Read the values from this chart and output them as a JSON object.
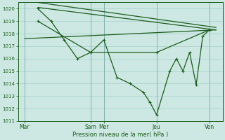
{
  "background_color": "#cde8e3",
  "grid_color": "#a8cfc8",
  "line_color": "#1a5c1a",
  "ylabel": "Pression niveau de la mer( hPa )",
  "ylim": [
    1011,
    1020.5
  ],
  "yticks": [
    1011,
    1012,
    1013,
    1014,
    1015,
    1016,
    1017,
    1018,
    1019,
    1020
  ],
  "xtick_labels": [
    "Mar",
    "Sam",
    "Mer",
    "Jeu",
    "Ven"
  ],
  "xtick_positions": [
    0,
    5,
    6,
    10,
    14
  ],
  "xlim": [
    -0.5,
    15.0
  ],
  "series_main": {
    "x": [
      1,
      2,
      3,
      4,
      5,
      6,
      7,
      8,
      9,
      9.5,
      10,
      11,
      11.5,
      12,
      12.5,
      13,
      13.5,
      14
    ],
    "y": [
      1020.0,
      1019.0,
      1017.5,
      1016.0,
      1016.5,
      1017.5,
      1014.5,
      1014.0,
      1013.3,
      1012.5,
      1011.5,
      1015.0,
      1016.0,
      1015.0,
      1016.5,
      1013.9,
      1017.8,
      1018.3
    ]
  },
  "series_line1": {
    "x": [
      0,
      14.5
    ],
    "y": [
      1017.6,
      1018.3
    ]
  },
  "series_line2": {
    "x": [
      1,
      14.5
    ],
    "y": [
      1020.1,
      1018.3
    ]
  },
  "series_line3": {
    "x": [
      1,
      14.5
    ],
    "y": [
      1020.5,
      1018.5
    ]
  },
  "series_v": {
    "x": [
      1,
      5,
      10,
      14
    ],
    "y": [
      1019.0,
      1016.5,
      1016.5,
      1018.3
    ]
  }
}
